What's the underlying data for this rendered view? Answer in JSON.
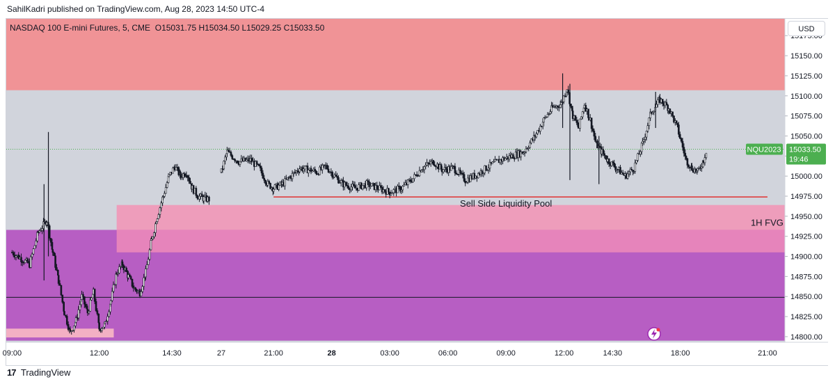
{
  "header": {
    "published": "SahilKadri published on TradingView.com, Aug 28, 2023 14:50 UTC-4",
    "currency_button": "USD"
  },
  "footer": {
    "brand": "TradingView",
    "logo_glyph": "17"
  },
  "chart_data": {
    "type": "candlestick",
    "title": "NASDAQ 100 E-mini Futures, 5, CME",
    "ohlc_label": "O15031.75  H15034.50  L15029.25  C15033.50",
    "ylim": [
      14793,
      15196
    ],
    "y_ticks": [
      15175,
      15150,
      15125,
      15100,
      15075,
      15050,
      15025,
      15000,
      14975,
      14950,
      14925,
      14900,
      14875,
      14850,
      14825,
      14800
    ],
    "y_tick_labels": [
      "15175.00",
      "15150.00",
      "15125.00",
      "15100.00",
      "15075.00",
      "15050.00",
      "15025.00",
      "15000.00",
      "14975.00",
      "14950.00",
      "14925.00",
      "14900.00",
      "14875.00",
      "14850.00",
      "14825.00",
      "14800.00"
    ],
    "x_ticks": [
      {
        "label": "09:00",
        "x": 0.0,
        "bold": false
      },
      {
        "label": "12:00",
        "x": 3.0,
        "bold": false
      },
      {
        "label": "14:30",
        "x": 5.5,
        "bold": false
      },
      {
        "label": "27",
        "x": 7.2,
        "bold": false
      },
      {
        "label": "21:00",
        "x": 9.0,
        "bold": false
      },
      {
        "label": "28",
        "x": 11.0,
        "bold": true
      },
      {
        "label": "03:00",
        "x": 13.0,
        "bold": false
      },
      {
        "label": "06:00",
        "x": 15.0,
        "bold": false
      },
      {
        "label": "09:00",
        "x": 17.0,
        "bold": false
      },
      {
        "label": "12:00",
        "x": 19.0,
        "bold": false
      },
      {
        "label": "14:30",
        "x": 20.67,
        "bold": false
      },
      {
        "label": "18:00",
        "x": 23.0,
        "bold": false
      },
      {
        "label": "21:00",
        "x": 26.0,
        "bold": false
      }
    ],
    "x_range": [
      -0.2,
      26.6
    ],
    "price_path": [
      [
        0.0,
        14905
      ],
      [
        0.6,
        14890
      ],
      [
        0.9,
        14930
      ],
      [
        1.2,
        14945
      ],
      [
        1.4,
        14905
      ],
      [
        1.6,
        14870
      ],
      [
        1.8,
        14830
      ],
      [
        2.0,
        14805
      ],
      [
        2.2,
        14820
      ],
      [
        2.4,
        14850
      ],
      [
        2.6,
        14830
      ],
      [
        2.8,
        14855
      ],
      [
        3.0,
        14810
      ],
      [
        3.2,
        14815
      ],
      [
        3.4,
        14845
      ],
      [
        3.6,
        14880
      ],
      [
        3.8,
        14890
      ],
      [
        4.0,
        14875
      ],
      [
        4.2,
        14860
      ],
      [
        4.4,
        14855
      ],
      [
        4.6,
        14880
      ],
      [
        4.8,
        14920
      ],
      [
        5.0,
        14950
      ],
      [
        5.2,
        14975
      ],
      [
        5.4,
        15000
      ],
      [
        5.6,
        15012
      ],
      [
        5.8,
        15000
      ],
      [
        6.0,
        15005
      ],
      [
        6.2,
        14985
      ],
      [
        6.4,
        14975
      ],
      [
        6.6,
        14972
      ],
      [
        6.8,
        14971
      ],
      [
        7.2,
        15005
      ],
      [
        7.4,
        15030
      ],
      [
        7.8,
        15018
      ],
      [
        8.2,
        15020
      ],
      [
        8.5,
        15010
      ],
      [
        8.8,
        14990
      ],
      [
        9.0,
        14985
      ],
      [
        9.3,
        14990
      ],
      [
        9.6,
        15000
      ],
      [
        9.9,
        15010
      ],
      [
        10.2,
        15008
      ],
      [
        10.5,
        15005
      ],
      [
        10.8,
        15012
      ],
      [
        11.1,
        15000
      ],
      [
        11.4,
        14990
      ],
      [
        11.8,
        14985
      ],
      [
        12.2,
        14990
      ],
      [
        12.6,
        14985
      ],
      [
        13.0,
        14980
      ],
      [
        13.4,
        14985
      ],
      [
        13.8,
        14997
      ],
      [
        14.1,
        15010
      ],
      [
        14.5,
        15018
      ],
      [
        14.8,
        15008
      ],
      [
        15.2,
        15010
      ],
      [
        15.6,
        14995
      ],
      [
        16.0,
        15002
      ],
      [
        16.4,
        15012
      ],
      [
        16.8,
        15020
      ],
      [
        17.2,
        15025
      ],
      [
        17.6,
        15030
      ],
      [
        18.0,
        15050
      ],
      [
        18.3,
        15070
      ],
      [
        18.6,
        15085
      ],
      [
        18.9,
        15090
      ],
      [
        19.1,
        15110
      ],
      [
        19.3,
        15075
      ],
      [
        19.5,
        15060
      ],
      [
        19.7,
        15090
      ],
      [
        19.9,
        15070
      ],
      [
        20.1,
        15040
      ],
      [
        20.3,
        15030
      ],
      [
        20.5,
        15020
      ],
      [
        20.8,
        15010
      ],
      [
        21.1,
        15000
      ],
      [
        21.4,
        15010
      ],
      [
        21.7,
        15040
      ],
      [
        22.0,
        15080
      ],
      [
        22.3,
        15095
      ],
      [
        22.6,
        15085
      ],
      [
        22.9,
        15060
      ],
      [
        23.2,
        15020
      ],
      [
        23.4,
        15010
      ],
      [
        23.6,
        15005
      ],
      [
        23.8,
        15020
      ],
      [
        23.9,
        15033
      ]
    ],
    "wick_spikes": [
      [
        1.25,
        15055,
        14900
      ],
      [
        1.1,
        14990,
        14870
      ],
      [
        18.95,
        15128,
        15060
      ],
      [
        19.2,
        15115,
        14995
      ],
      [
        22.15,
        15105,
        15060
      ],
      [
        20.2,
        15050,
        14990
      ]
    ],
    "zones": [
      {
        "y_top": 15196,
        "y_bottom": 15107,
        "x_start": -0.2,
        "x_end": 26.6,
        "color": "#f09396"
      },
      {
        "y_top": 14964,
        "y_bottom": 14905,
        "x_start": 3.6,
        "x_end": 26.6,
        "color": "#ee9dbb"
      },
      {
        "y_top": 14933,
        "y_bottom": 14795,
        "x_start": -0.2,
        "x_end": 26.6,
        "color": "#b75ec3"
      },
      {
        "y_top": 14933,
        "y_bottom": 14905,
        "x_start": 3.6,
        "x_end": 26.6,
        "color": "#e684bb"
      },
      {
        "y_top": 14810,
        "y_bottom": 14799,
        "x_start": -0.2,
        "x_end": 3.5,
        "color": "#f3b0c4"
      }
    ],
    "horizontal_lines": [
      {
        "y": 14974,
        "x_start": 9.0,
        "x_end": 26.0,
        "color": "#e03131",
        "width": 1.5
      },
      {
        "y": 14849,
        "x_start": -0.2,
        "x_end": 26.6,
        "color": "#131722",
        "width": 1
      }
    ],
    "current_price_line": {
      "y": 15033.5,
      "color": "#4caf50"
    },
    "annotations": [
      {
        "text": "Sell Side Liquidity Pool",
        "x": 17.0,
        "y": 14962,
        "anchor": "middle",
        "size": 13
      },
      {
        "text": "1H FVG",
        "x": 26.55,
        "y": 14938,
        "anchor": "end",
        "size": 13
      }
    ],
    "symbol_tag": {
      "text": "NQU2023",
      "y": 15033.5,
      "color": "#4caf50"
    },
    "last_price_tag": {
      "price": "15033.50",
      "countdown": "19:46",
      "color": "#4caf50"
    }
  }
}
